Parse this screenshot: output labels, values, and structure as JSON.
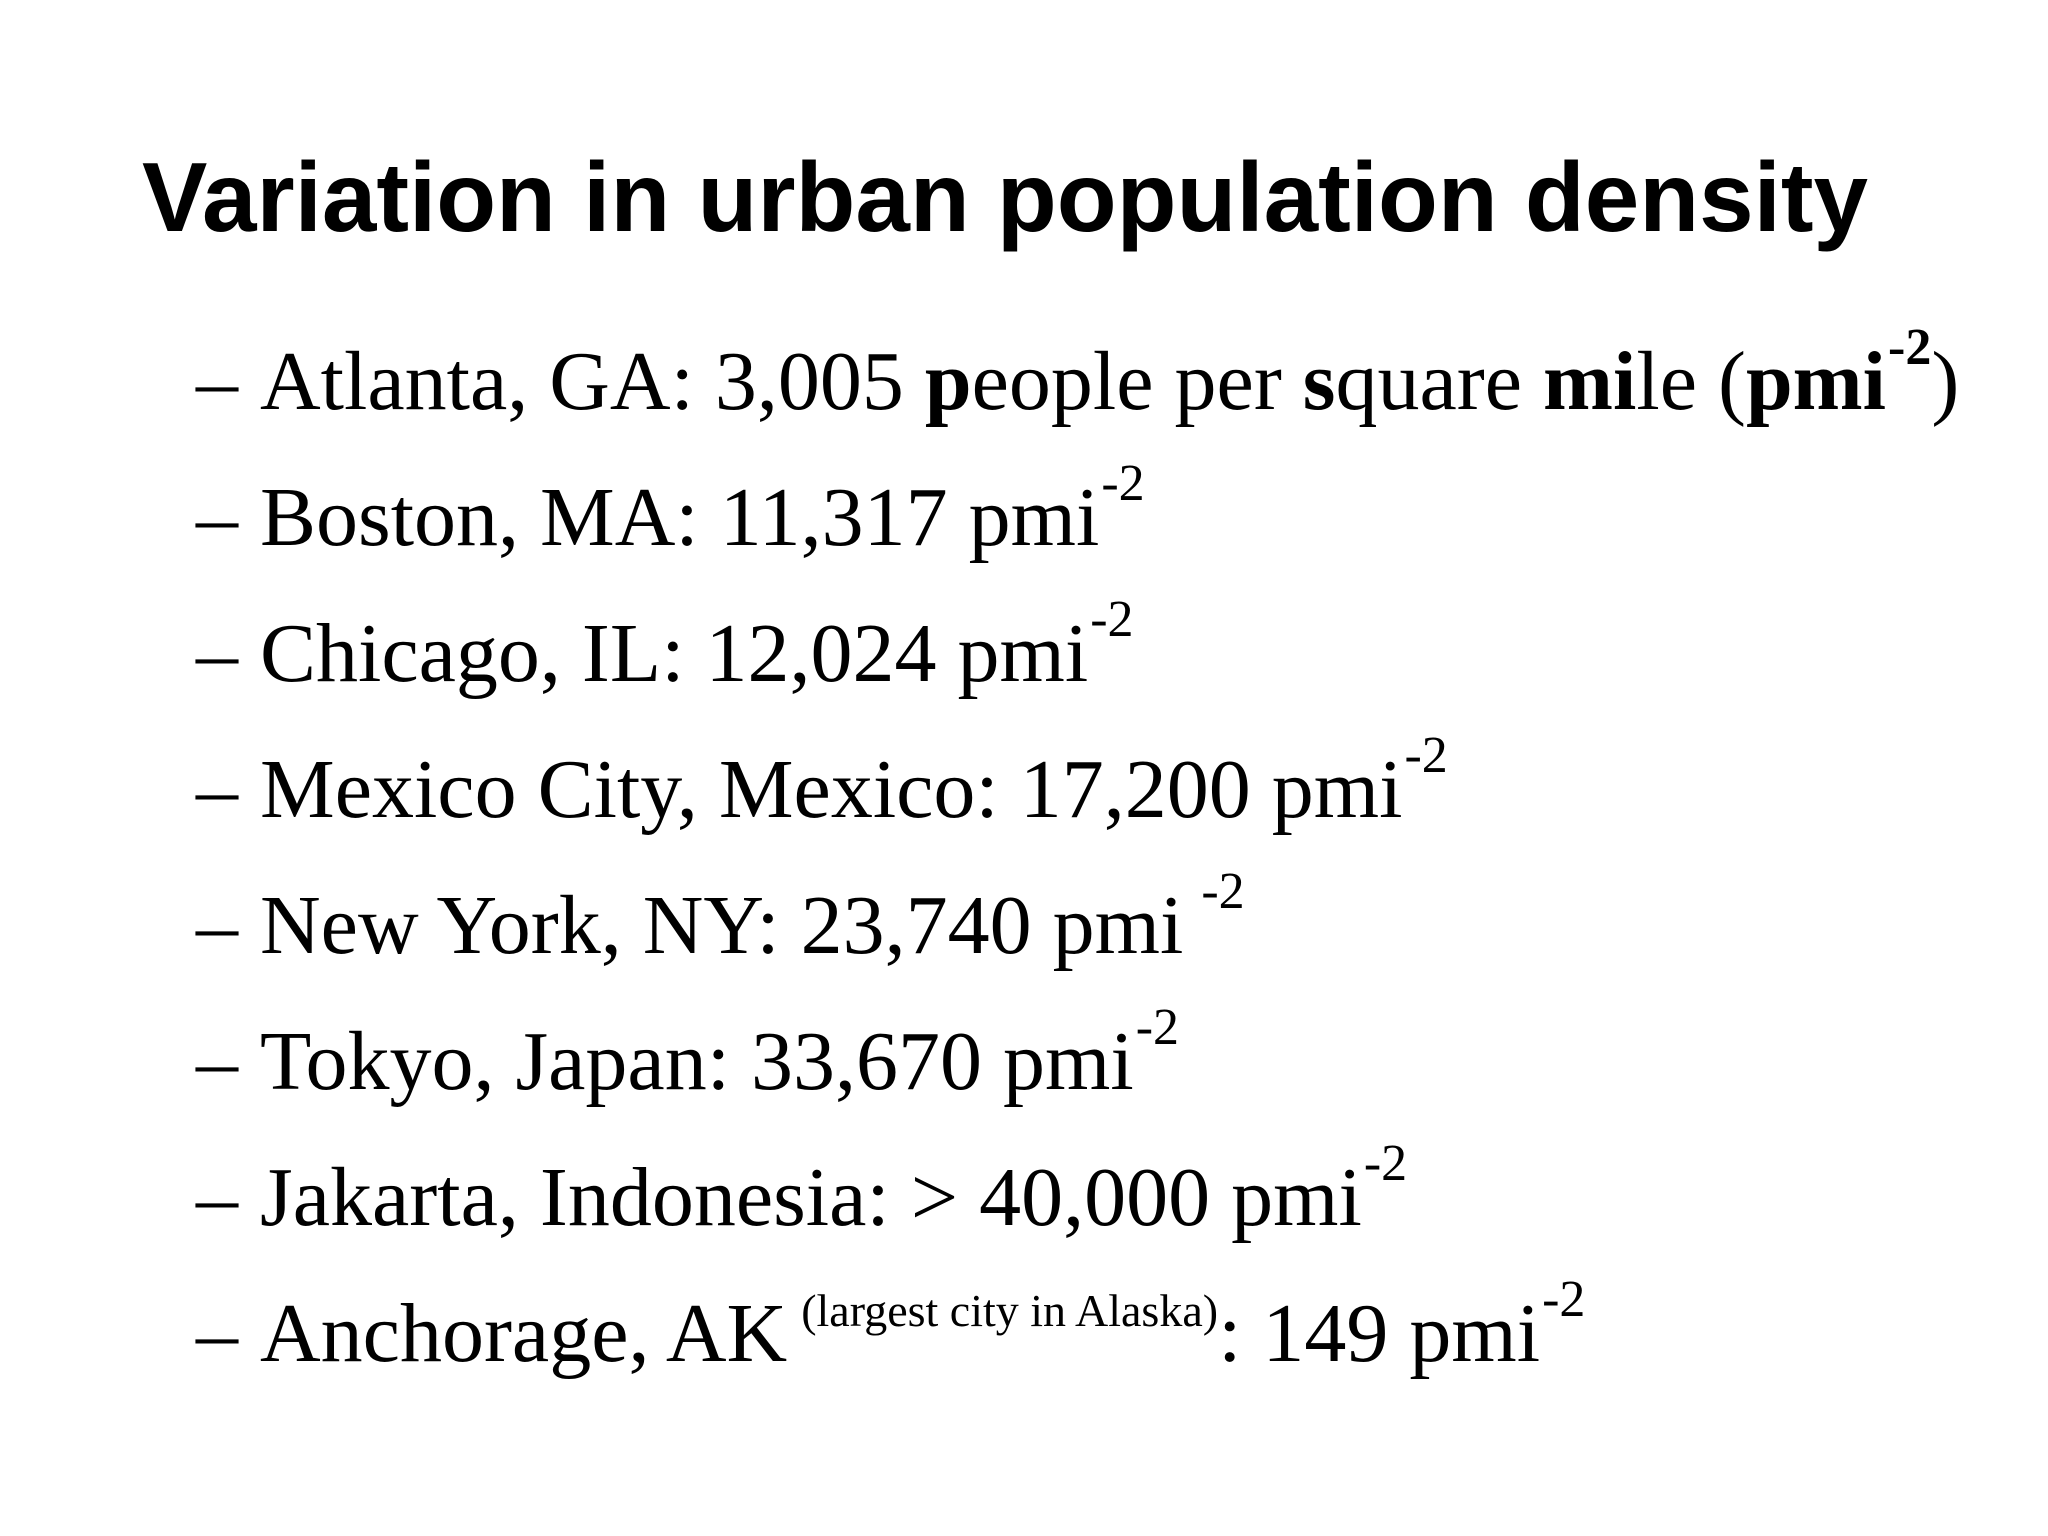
{
  "slide": {
    "title": "Variation in urban population density",
    "exponent": "-2",
    "dash": "–",
    "first_item": {
      "prefix": "Atlanta, GA: 3,005 ",
      "p": "p",
      "eople_per": "eople per ",
      "s": "s",
      "quare": "quare ",
      "mi": "mi",
      "le": "le ",
      "open": "(",
      "pmi": "pmi",
      "close": ")"
    },
    "items": [
      {
        "text": "Boston, MA: 11,317 pmi"
      },
      {
        "text": "Chicago, IL: 12,024 pmi"
      },
      {
        "text": "Mexico City, Mexico: 17,200 pmi"
      },
      {
        "text": "New York, NY: 23,740 pmi"
      },
      {
        "text": "Tokyo, Japan: 33,670 pmi"
      },
      {
        "text": "Jakarta, Indonesia: > 40,000 pmi"
      }
    ],
    "last_item": {
      "city": "Anchorage, AK",
      "note": "(largest city in Alaska)",
      "value": ": 149 pmi"
    }
  }
}
